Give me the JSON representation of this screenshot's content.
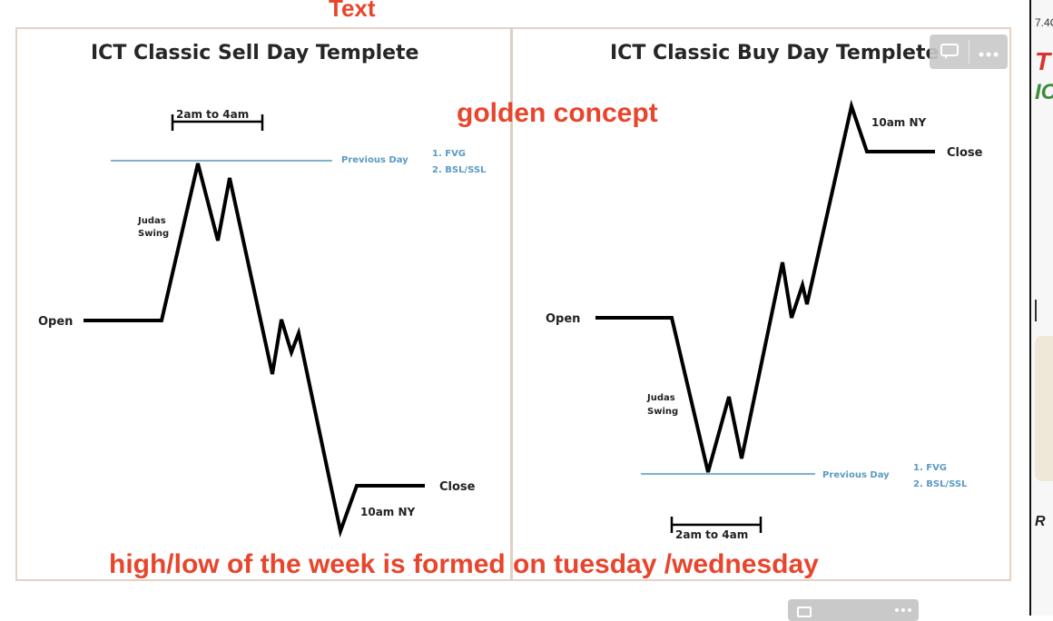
{
  "annotations": {
    "top": "Text",
    "golden": "golden concept",
    "bottom": "high/low of the week is formed on tuesday /wednesday"
  },
  "sell_day": {
    "title": "ICT Classic Sell Day Templete",
    "open": "Open",
    "close": "Close",
    "judas_line1": "Judas",
    "judas_line2": "Swing",
    "time_window": "2am to 4am",
    "previous_day": "Previous Day",
    "fvg": "1. FVG",
    "bsl_ssl": "2. BSL/SSL",
    "ny_time": "10am NY"
  },
  "buy_day": {
    "title": "ICT Classic Buy Day Templete",
    "open": "Open",
    "close": "Close",
    "judas_line1": "Judas",
    "judas_line2": "Swing",
    "time_window": "2am to 4am",
    "previous_day": "Previous Day",
    "fvg": "1. FVG",
    "bsl_ssl": "2. BSL/SSL",
    "ny_time": "10am NY"
  },
  "toolbar": {
    "comment_icon": "comment-icon",
    "more_icon": "more-icon"
  },
  "side_strip": {
    "price": "7.4C",
    "letter_t": "T",
    "letter_ic": "IC",
    "letter_r": "R"
  },
  "colors": {
    "accent": "#e8452c",
    "level_line": "#5b9bc2",
    "price_path": "#000000"
  }
}
